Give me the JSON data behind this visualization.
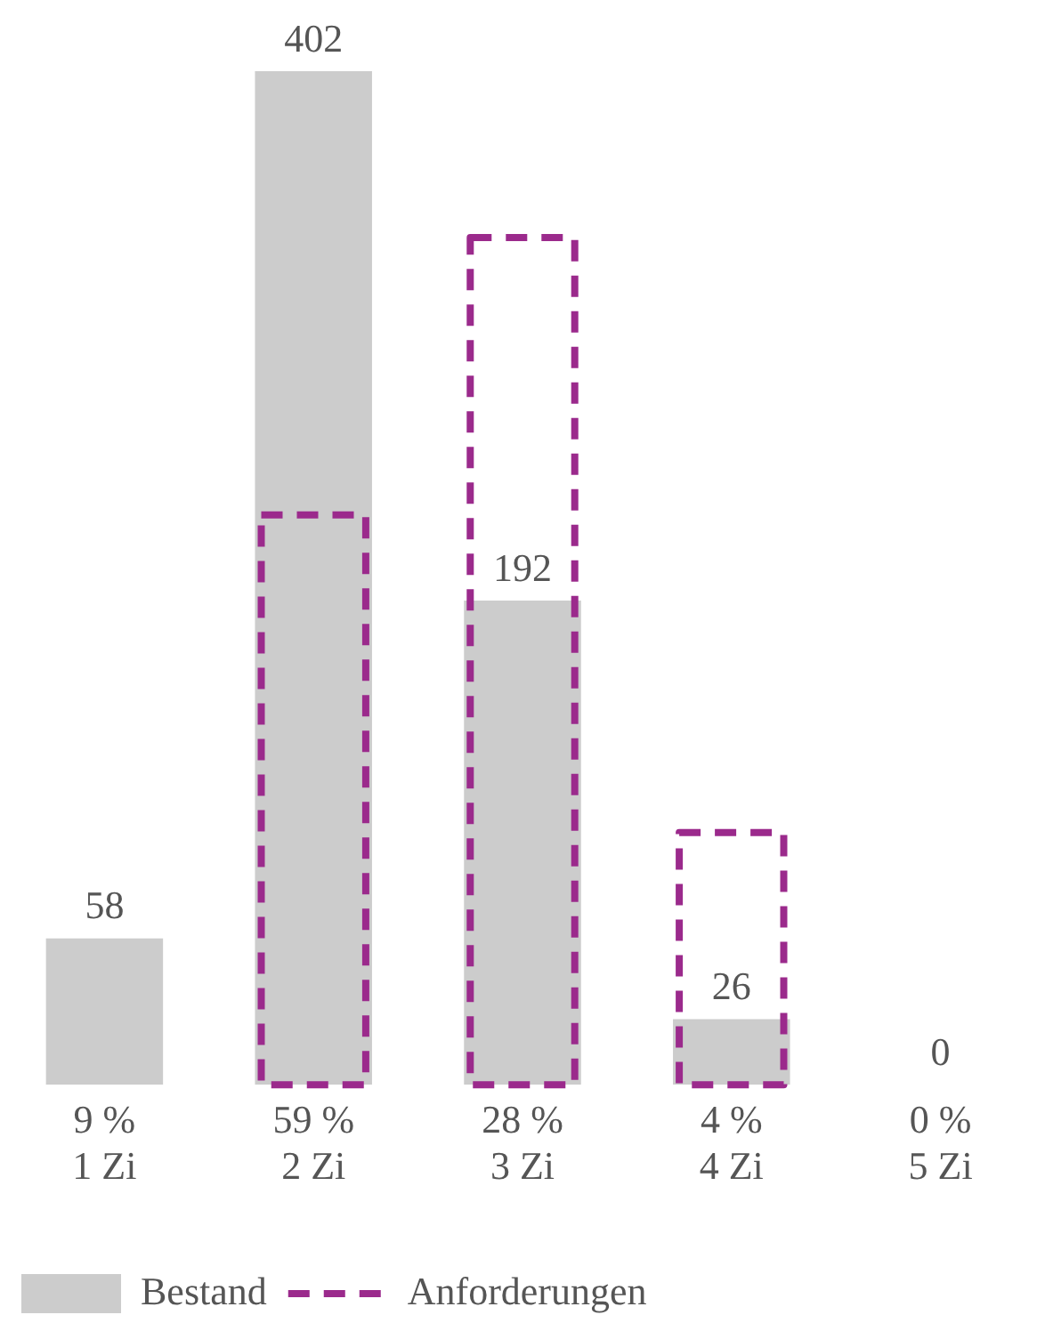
{
  "chart_data": {
    "type": "bar",
    "categories": [
      "1 Zi",
      "2 Zi",
      "3 Zi",
      "4 Zi",
      "5 Zi"
    ],
    "series": [
      {
        "name": "Bestand",
        "color": "#cccccc",
        "values": [
          58,
          402,
          192,
          26,
          0
        ],
        "value_labels": [
          "58",
          "402",
          "192",
          "26",
          "0"
        ]
      },
      {
        "name": "Anforderungen",
        "color": "#9b2a8c",
        "line_style": "dashed",
        "values": [
          null,
          226,
          336,
          100,
          null
        ]
      }
    ],
    "tick_labels": "x",
    "grid": false,
    "legend": "bottom left",
    "annotations": [
      "9 %",
      "59 %",
      "28 %",
      "4 %",
      "0 %"
    ]
  }
}
